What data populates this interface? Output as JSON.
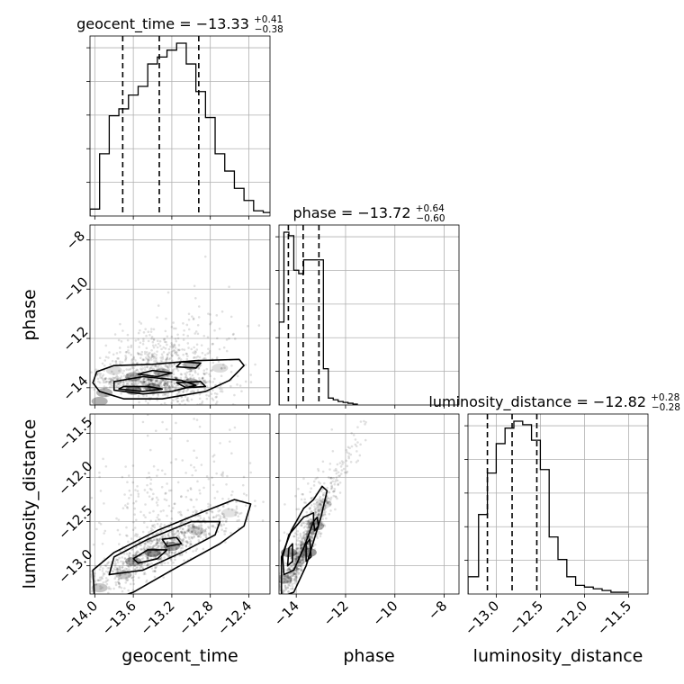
{
  "chart_data": {
    "type": "corner",
    "parameters": [
      "geocent_time",
      "phase",
      "luminosity_distance"
    ],
    "grid": true,
    "ranges": {
      "geocent_time": [
        -14.05,
        -12.18
      ],
      "phase": [
        -14.7,
        -7.4
      ],
      "luminosity_distance": [
        -13.32,
        -11.28
      ]
    },
    "ticks": {
      "geocent_time": [
        -14.0,
        -13.6,
        -13.2,
        -12.8,
        -12.4
      ],
      "phase": [
        -14,
        -12,
        -10,
        -8
      ],
      "luminosity_distance": [
        -13.0,
        -12.5,
        -12.0,
        -11.5
      ]
    },
    "tick_labels": {
      "geocent_time": [
        "−14.0",
        "−13.6",
        "−13.2",
        "−12.8",
        "−12.4"
      ],
      "phase": [
        "−14",
        "−12",
        "−10",
        "−8"
      ],
      "luminosity_distance": [
        "−13.0",
        "−12.5",
        "−12.0",
        "−11.5"
      ]
    },
    "axis_labels": {
      "geocent_time": "geocent_time",
      "phase": "phase",
      "luminosity_distance": "luminosity_distance"
    },
    "titles": {
      "geocent_time": {
        "prefix": "geocent_time = −13.33",
        "plus": "+0.41",
        "minus": "−0.38"
      },
      "phase": {
        "prefix": "phase = −13.72",
        "plus": "+0.64",
        "minus": "−0.60"
      },
      "luminosity_distance": {
        "prefix": "luminosity_distance = −12.82",
        "plus": "+0.28",
        "minus": "−0.28"
      }
    },
    "quantiles": {
      "geocent_time": [
        -13.71,
        -13.33,
        -12.92
      ],
      "phase": [
        -14.32,
        -13.72,
        -13.08
      ],
      "luminosity_distance": [
        -13.1,
        -12.82,
        -12.54
      ]
    },
    "histograms": {
      "geocent_time": {
        "bins": [
          -14.05,
          -13.95,
          -13.85,
          -13.75,
          -13.65,
          -13.55,
          -13.45,
          -13.35,
          -13.25,
          -13.15,
          -13.05,
          -12.95,
          -12.85,
          -12.75,
          -12.65,
          -12.55,
          -12.45,
          -12.35,
          -12.25,
          -12.15
        ],
        "counts": [
          0.04,
          0.36,
          0.58,
          0.62,
          0.7,
          0.75,
          0.88,
          0.92,
          0.96,
          1.0,
          0.88,
          0.72,
          0.57,
          0.36,
          0.26,
          0.16,
          0.09,
          0.03,
          0.02
        ]
      },
      "phase": {
        "bins": [
          -14.7,
          -14.5,
          -14.3,
          -14.1,
          -13.9,
          -13.7,
          -13.5,
          -13.3,
          -13.1,
          -12.9,
          -12.7,
          -12.5,
          -12.3,
          -12.1,
          -11.9,
          -11.7,
          -11.5
        ],
        "counts": [
          0.48,
          1.0,
          0.98,
          0.78,
          0.76,
          0.84,
          0.84,
          0.84,
          0.84,
          0.21,
          0.04,
          0.03,
          0.02,
          0.015,
          0.01,
          0.005
        ]
      },
      "luminosity_distance": {
        "bins": [
          -13.32,
          -13.2,
          -13.1,
          -13.0,
          -12.9,
          -12.8,
          -12.7,
          -12.6,
          -12.5,
          -12.4,
          -12.3,
          -12.2,
          -12.1,
          -12.0,
          -11.9,
          -11.8,
          -11.7,
          -11.5
        ],
        "counts": [
          0.1,
          0.46,
          0.7,
          0.87,
          0.96,
          1.0,
          0.98,
          0.89,
          0.72,
          0.33,
          0.2,
          0.1,
          0.05,
          0.04,
          0.03,
          0.02,
          0.01
        ]
      }
    },
    "contours": {
      "phase_vs_geocent_time": [
        [
          [
            -13.95,
            -14.15
          ],
          [
            -13.7,
            -14.45
          ],
          [
            -13.3,
            -14.45
          ],
          [
            -12.85,
            -14.15
          ],
          [
            -12.6,
            -13.7
          ],
          [
            -12.45,
            -13.1
          ],
          [
            -12.5,
            -12.85
          ],
          [
            -12.95,
            -12.9
          ],
          [
            -13.4,
            -13.05
          ],
          [
            -13.8,
            -13.1
          ],
          [
            -13.98,
            -13.35
          ],
          [
            -14.02,
            -13.8
          ]
        ],
        [
          [
            -13.8,
            -14.1
          ],
          [
            -13.5,
            -14.25
          ],
          [
            -13.2,
            -14.15
          ],
          [
            -12.95,
            -13.9
          ],
          [
            -13.1,
            -13.7
          ],
          [
            -13.5,
            -13.55
          ],
          [
            -13.8,
            -13.75
          ]
        ],
        [
          [
            -13.75,
            -14.05
          ],
          [
            -13.5,
            -14.15
          ],
          [
            -13.3,
            -14.05
          ],
          [
            -13.45,
            -13.95
          ],
          [
            -13.7,
            -13.95
          ]
        ],
        [
          [
            -13.05,
            -14.0
          ],
          [
            -12.85,
            -13.95
          ],
          [
            -12.9,
            -13.75
          ],
          [
            -13.15,
            -13.8
          ]
        ],
        [
          [
            -13.55,
            -13.45
          ],
          [
            -13.35,
            -13.55
          ],
          [
            -13.2,
            -13.4
          ],
          [
            -13.4,
            -13.3
          ]
        ],
        [
          [
            -13.15,
            -13.15
          ],
          [
            -12.95,
            -13.2
          ],
          [
            -12.9,
            -13.0
          ],
          [
            -13.1,
            -12.95
          ]
        ]
      ],
      "luminosity_distance_vs_geocent_time": [
        [
          [
            -14.0,
            -13.45
          ],
          [
            -13.6,
            -13.3
          ],
          [
            -13.2,
            -13.05
          ],
          [
            -12.7,
            -12.75
          ],
          [
            -12.45,
            -12.55
          ],
          [
            -12.38,
            -12.3
          ],
          [
            -12.55,
            -12.25
          ],
          [
            -12.9,
            -12.4
          ],
          [
            -13.35,
            -12.6
          ],
          [
            -13.8,
            -12.85
          ],
          [
            -14.02,
            -13.05
          ]
        ],
        [
          [
            -13.85,
            -13.1
          ],
          [
            -13.5,
            -13.05
          ],
          [
            -13.1,
            -12.85
          ],
          [
            -12.75,
            -12.65
          ],
          [
            -12.7,
            -12.5
          ],
          [
            -13.0,
            -12.5
          ],
          [
            -13.45,
            -12.7
          ],
          [
            -13.8,
            -12.9
          ]
        ],
        [
          [
            -13.55,
            -12.97
          ],
          [
            -13.35,
            -12.92
          ],
          [
            -13.25,
            -12.82
          ],
          [
            -13.45,
            -12.82
          ],
          [
            -13.6,
            -12.92
          ]
        ],
        [
          [
            -13.25,
            -12.78
          ],
          [
            -13.1,
            -12.75
          ],
          [
            -13.15,
            -12.68
          ],
          [
            -13.3,
            -12.7
          ]
        ]
      ],
      "luminosity_distance_vs_phase": [
        [
          [
            -14.6,
            -13.35
          ],
          [
            -14.1,
            -13.3
          ],
          [
            -13.6,
            -13.0
          ],
          [
            -13.0,
            -12.45
          ],
          [
            -12.75,
            -12.15
          ],
          [
            -12.95,
            -12.1
          ],
          [
            -13.3,
            -12.25
          ],
          [
            -13.7,
            -12.35
          ],
          [
            -14.2,
            -12.6
          ],
          [
            -14.6,
            -12.9
          ]
        ],
        [
          [
            -14.5,
            -13.1
          ],
          [
            -14.1,
            -13.05
          ],
          [
            -13.7,
            -12.8
          ],
          [
            -13.3,
            -12.5
          ],
          [
            -13.3,
            -12.4
          ],
          [
            -13.7,
            -12.45
          ],
          [
            -14.3,
            -12.65
          ],
          [
            -14.55,
            -12.9
          ]
        ],
        [
          [
            -14.35,
            -13.0
          ],
          [
            -14.15,
            -12.95
          ],
          [
            -14.15,
            -12.75
          ],
          [
            -14.3,
            -12.8
          ]
        ],
        [
          [
            -13.6,
            -12.95
          ],
          [
            -13.4,
            -12.9
          ],
          [
            -13.45,
            -12.7
          ],
          [
            -13.6,
            -12.75
          ]
        ],
        [
          [
            -13.25,
            -12.6
          ],
          [
            -13.1,
            -12.55
          ],
          [
            -13.15,
            -12.45
          ],
          [
            -13.3,
            -12.5
          ]
        ]
      ]
    },
    "fill_cells": {
      "phase_vs_geocent_time": [
        [
          -13.9,
          -14.2,
          0.55
        ],
        [
          -13.6,
          -14.1,
          0.85
        ],
        [
          -13.4,
          -14.0,
          0.7
        ],
        [
          -13.6,
          -13.55,
          0.6
        ],
        [
          -13.3,
          -13.4,
          0.55
        ],
        [
          -13.0,
          -13.1,
          0.5
        ],
        [
          -13.0,
          -13.8,
          0.55
        ],
        [
          -13.8,
          -13.3,
          0.25
        ],
        [
          -12.7,
          -13.2,
          0.25
        ],
        [
          -13.95,
          -14.55,
          0.55
        ]
      ],
      "luminosity_distance_vs_geocent_time": [
        [
          -13.6,
          -12.95,
          0.6
        ],
        [
          -13.4,
          -12.85,
          0.8
        ],
        [
          -13.2,
          -12.78,
          0.6
        ],
        [
          -13.7,
          -13.1,
          0.4
        ],
        [
          -12.95,
          -12.6,
          0.35
        ],
        [
          -13.95,
          -13.25,
          0.4
        ],
        [
          -12.6,
          -12.4,
          0.2
        ]
      ],
      "luminosity_distance_vs_phase": [
        [
          -14.3,
          -12.85,
          0.7
        ],
        [
          -13.5,
          -12.85,
          0.75
        ],
        [
          -13.2,
          -12.55,
          0.6
        ],
        [
          -14.5,
          -13.15,
          0.5
        ],
        [
          -13.9,
          -12.9,
          0.3
        ],
        [
          -12.9,
          -12.3,
          0.25
        ]
      ]
    }
  }
}
